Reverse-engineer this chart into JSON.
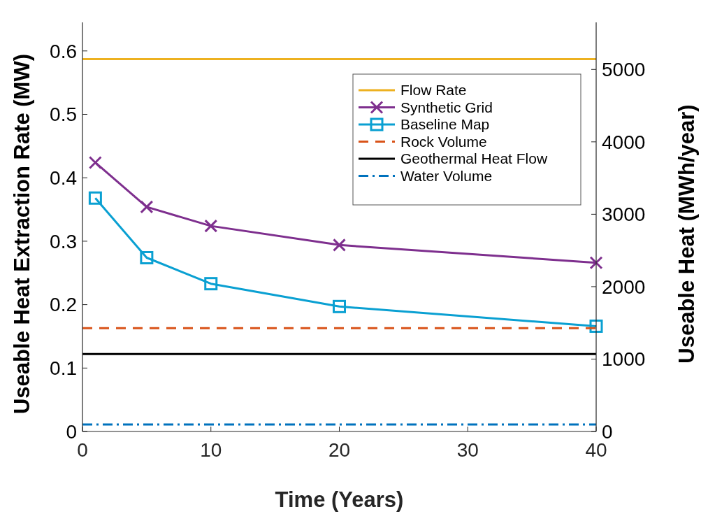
{
  "chart_data": {
    "type": "line",
    "xlabel": "Time (Years)",
    "ylabel": "Useable Heat Extraction Rate (MW)",
    "y2label": "Useable Heat (MWh/year)",
    "xlim": [
      0,
      40
    ],
    "xticks": [
      0,
      10,
      20,
      30,
      40
    ],
    "ylim": [
      0,
      0.645
    ],
    "yticks": [
      0,
      0.1,
      0.2,
      0.3,
      0.4,
      0.5,
      0.6
    ],
    "y2lim": [
      0,
      5650
    ],
    "y2ticks": [
      0,
      1000,
      2000,
      3000,
      4000,
      5000
    ],
    "legend": "top right",
    "grid": false,
    "series": [
      {
        "name": "Flow Rate",
        "color": "#edb120",
        "x": [
          0,
          40
        ],
        "values": [
          0.587,
          0.587
        ],
        "marker": "none",
        "line_style": "solid"
      },
      {
        "name": "Synthetic Grid",
        "color": "#7e2f8e",
        "x": [
          1,
          5,
          10,
          20,
          40
        ],
        "values": [
          0.424,
          0.354,
          0.324,
          0.294,
          0.266
        ],
        "marker": "cross",
        "line_style": "solid"
      },
      {
        "name": "Baseline Map",
        "color": "#0aa0d2",
        "x": [
          1,
          5,
          10,
          20,
          40
        ],
        "values": [
          0.368,
          0.274,
          0.233,
          0.197,
          0.166
        ],
        "marker": "square",
        "line_style": "solid"
      },
      {
        "name": "Rock Volume",
        "color": "#d95319",
        "x": [
          0,
          40
        ],
        "values": [
          0.163,
          0.163
        ],
        "marker": "none",
        "line_style": "dashed"
      },
      {
        "name": "Geothermal Heat Flow",
        "color": "#000000",
        "x": [
          0,
          40
        ],
        "values": [
          0.122,
          0.122
        ],
        "marker": "none",
        "line_style": "solid"
      },
      {
        "name": "Water Volume",
        "color": "#0072bd",
        "x": [
          0,
          40
        ],
        "values": [
          0.011,
          0.011
        ],
        "marker": "none",
        "line_style": "dashdot"
      }
    ]
  }
}
